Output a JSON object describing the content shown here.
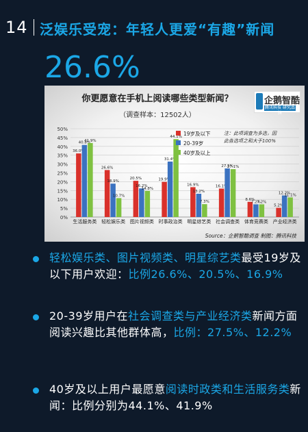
{
  "header": {
    "page_number": "14",
    "title": "泛娱乐受宠：年轻人更爱“有趣”新闻"
  },
  "highlight_percent": "26.6%",
  "chart_data": {
    "type": "bar",
    "title": "你更愿意在手机上阅读哪些类型新闻？",
    "subtitle": "（调查样本：12502人）",
    "categories": [
      "生活服务类",
      "轻松娱乐类",
      "图片视频类",
      "时事政治类",
      "明星综艺类",
      "社会调查类",
      "体育竞赛类",
      "产业经济类"
    ],
    "series": [
      {
        "name": "19岁及以下",
        "color": "#d9312b",
        "values": [
          36.0,
          26.6,
          20.5,
          19.9,
          16.9,
          16.1,
          8.6,
          5.2
        ]
      },
      {
        "name": "20-39岁",
        "color": "#3b72c0",
        "values": [
          40.8,
          18.9,
          16.2,
          31.4,
          13.2,
          27.5,
          7.2,
          12.2
        ]
      },
      {
        "name": "40岁及以上",
        "color": "#7fc141",
        "values": [
          41.9,
          10.7,
          14.8,
          44.1,
          7.3,
          27.1,
          7.2,
          11.1
        ]
      }
    ],
    "data_labels": [
      [
        "36.0%",
        "26.6%",
        "20.5%",
        "19.9%",
        "16.9%",
        "16.1%",
        "8.6%",
        "5.2%"
      ],
      [
        "40.8%",
        "18.9%",
        "16.2%",
        "31.4%",
        "13.2%",
        "27.5%",
        "7.2%",
        "12.2%"
      ],
      [
        "41.9%",
        "10.7%",
        "14.8%",
        "44.1%",
        "7.3%",
        "27.1%",
        "7.2%",
        "11.1%"
      ]
    ],
    "yticks": [
      "0%",
      "5%",
      "10%",
      "15%",
      "20%",
      "25%",
      "30%",
      "35%",
      "40%",
      "45%",
      "50%"
    ],
    "ylim": [
      0,
      50
    ],
    "grid": true,
    "legend_position": "top-center",
    "note": "注：此项调查为多选，因此各选项之和大于100%",
    "source_text": "Source：企鹅智酷调查     制图：腾讯科技",
    "logo_text": "企鹅智酷",
    "logo_subtext": "腾讯科技 研究品牌"
  },
  "bullets": [
    {
      "parts": [
        {
          "text": "轻松娱乐类、图片视频类、明星综艺类",
          "hl": true
        },
        {
          "text": "最受19岁及以下用户欢迎：",
          "hl": false
        },
        {
          "text": "比例26.6%、20.5%、16.9%",
          "hl": true
        }
      ]
    },
    {
      "parts": [
        {
          "text": "20-39岁用户在",
          "hl": false
        },
        {
          "text": "社会调查类与产业经济类",
          "hl": true
        },
        {
          "text": "新闻方面阅读兴趣比其他群体高，",
          "hl": false
        },
        {
          "text": "比例：27.5%、12.2%",
          "hl": true
        }
      ]
    },
    {
      "parts": [
        {
          "text": "40岁及以上用户最愿意",
          "hl": false
        },
        {
          "text": "阅读时政类和生活服务类",
          "hl": true
        },
        {
          "text": "新闻：比例分别为44.1%、41.9%",
          "hl": false
        }
      ]
    }
  ]
}
